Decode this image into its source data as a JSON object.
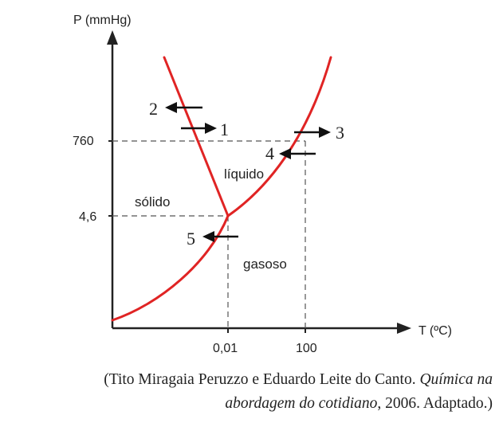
{
  "axes": {
    "y_label": "P (mmHg)",
    "x_label": "T (ºC)",
    "y_ticks": [
      "760",
      "4,6"
    ],
    "x_ticks": [
      "0,01",
      "100"
    ]
  },
  "regions": {
    "solid": "sólido",
    "liquid": "líquido",
    "gas": "gasoso"
  },
  "arrows": [
    {
      "label": "1",
      "direction": "right"
    },
    {
      "label": "2",
      "direction": "left"
    },
    {
      "label": "3",
      "direction": "right"
    },
    {
      "label": "4",
      "direction": "left"
    },
    {
      "label": "5",
      "direction": "left"
    }
  ],
  "colors": {
    "curve": "#e02424",
    "axis": "#222222",
    "guide": "#555555"
  },
  "caption": {
    "open": "(Tito Miragaia Peruzzo e Eduardo Leite do Canto. ",
    "title_1": "Química na",
    "title_2": "abordagem do cotidiano",
    "close": ", 2006. Adaptado.)"
  }
}
